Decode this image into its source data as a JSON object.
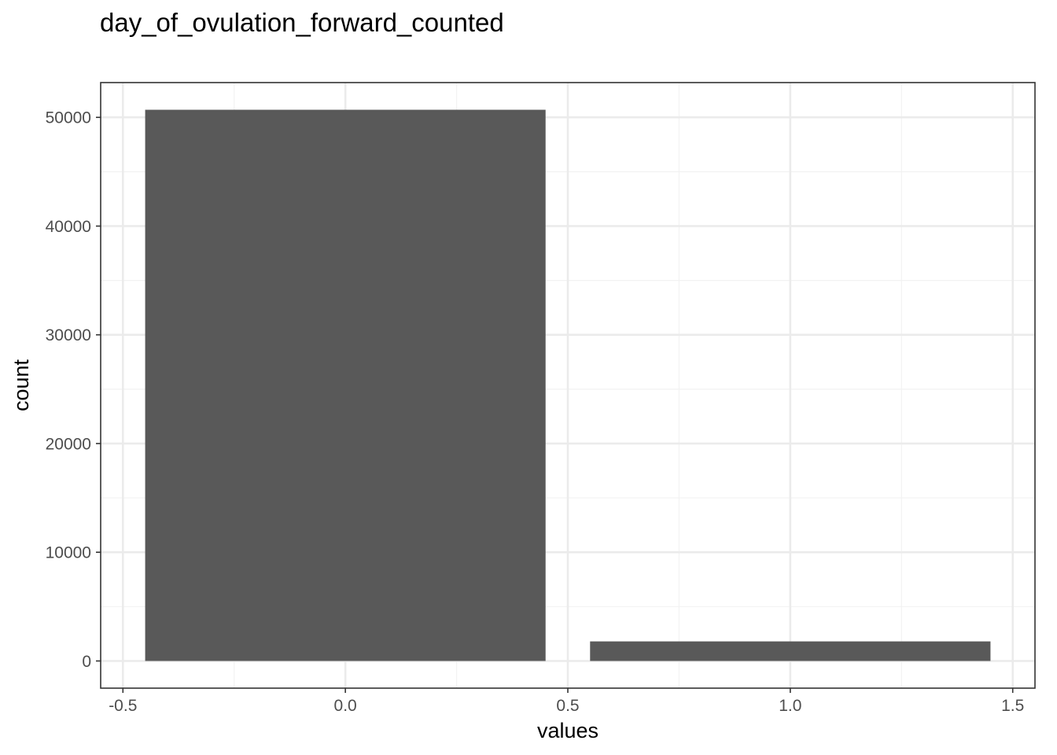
{
  "chart_data": {
    "type": "bar",
    "title": "day_of_ovulation_forward_counted",
    "xlabel": "values",
    "ylabel": "count",
    "x": [
      0,
      1
    ],
    "values": [
      50700,
      1800
    ],
    "bar_width": 0.9,
    "xlim": [
      -0.55,
      1.55
    ],
    "ylim": [
      -2500,
      53200
    ],
    "x_ticks": [
      -0.5,
      0.0,
      0.5,
      1.0,
      1.5
    ],
    "x_tick_labels": [
      "-0.5",
      "0.0",
      "0.5",
      "1.0",
      "1.5"
    ],
    "y_ticks": [
      0,
      10000,
      20000,
      30000,
      40000,
      50000
    ],
    "y_tick_labels": [
      "0",
      "10000",
      "20000",
      "30000",
      "40000",
      "50000"
    ],
    "grid": true,
    "theme": "bw",
    "colors": {
      "bar": "#595959",
      "grid_major": "#ebebeb",
      "grid_minor": "#f2f2f2",
      "panel_border": "#333333"
    }
  }
}
